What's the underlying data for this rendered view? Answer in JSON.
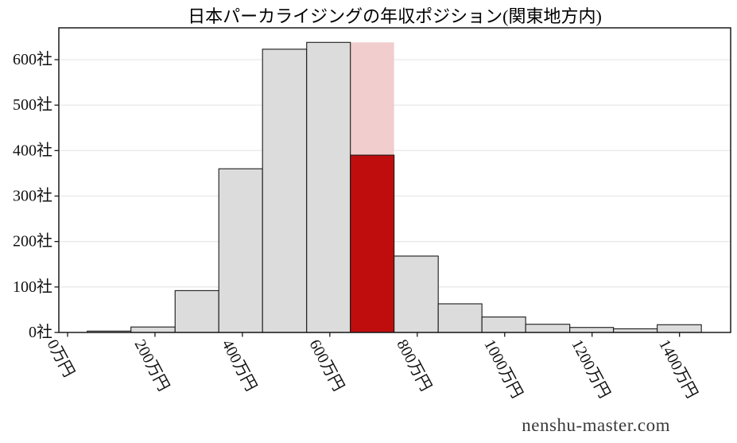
{
  "title": "日本パーカライジングの年収ポジション(関東地方内)",
  "watermark": "nenshu-master.com",
  "chart_data": {
    "type": "bar",
    "subtype": "histogram",
    "title": "日本パーカライジングの年収ポジション(関東地方内)",
    "x_unit": "万円",
    "y_unit": "社",
    "bin_edges": [
      45,
      145,
      246,
      346,
      446,
      547,
      647,
      747,
      848,
      948,
      1048,
      1149,
      1249,
      1349,
      1450
    ],
    "counts": [
      3,
      12,
      92,
      360,
      623,
      638,
      638,
      168,
      63,
      34,
      18,
      11,
      8,
      17
    ],
    "highlight": {
      "bin_index": 6,
      "bin_range": [
        647,
        747
      ],
      "bin_count": 638,
      "position_count": 390
    },
    "x_ticks": {
      "values": [
        0,
        200,
        400,
        600,
        800,
        1000,
        1200,
        1400
      ],
      "labels": [
        "0万円",
        "200万円",
        "400万円",
        "600万円",
        "800万円",
        "1000万円",
        "1200万円",
        "1400万円"
      ]
    },
    "y_ticks": {
      "values": [
        0,
        100,
        200,
        300,
        400,
        500,
        600
      ],
      "labels": [
        "0社",
        "100社",
        "200社",
        "300社",
        "400社",
        "500社",
        "600社"
      ]
    },
    "xlim": [
      -20,
      1517
    ],
    "ylim": [
      0,
      670
    ],
    "grid": "horizontal",
    "legend": "none",
    "colors": {
      "bar_fill": "#dcdcdc",
      "bar_edge": "#1a1a1a",
      "highlight_bar": "#bf0d0d",
      "highlight_band": "#f2cdcd",
      "grid": "#e5e5e5",
      "axis": "#1a1a1a",
      "text": "#111111",
      "watermark": "#3a3a3a",
      "background": "#ffffff"
    }
  }
}
